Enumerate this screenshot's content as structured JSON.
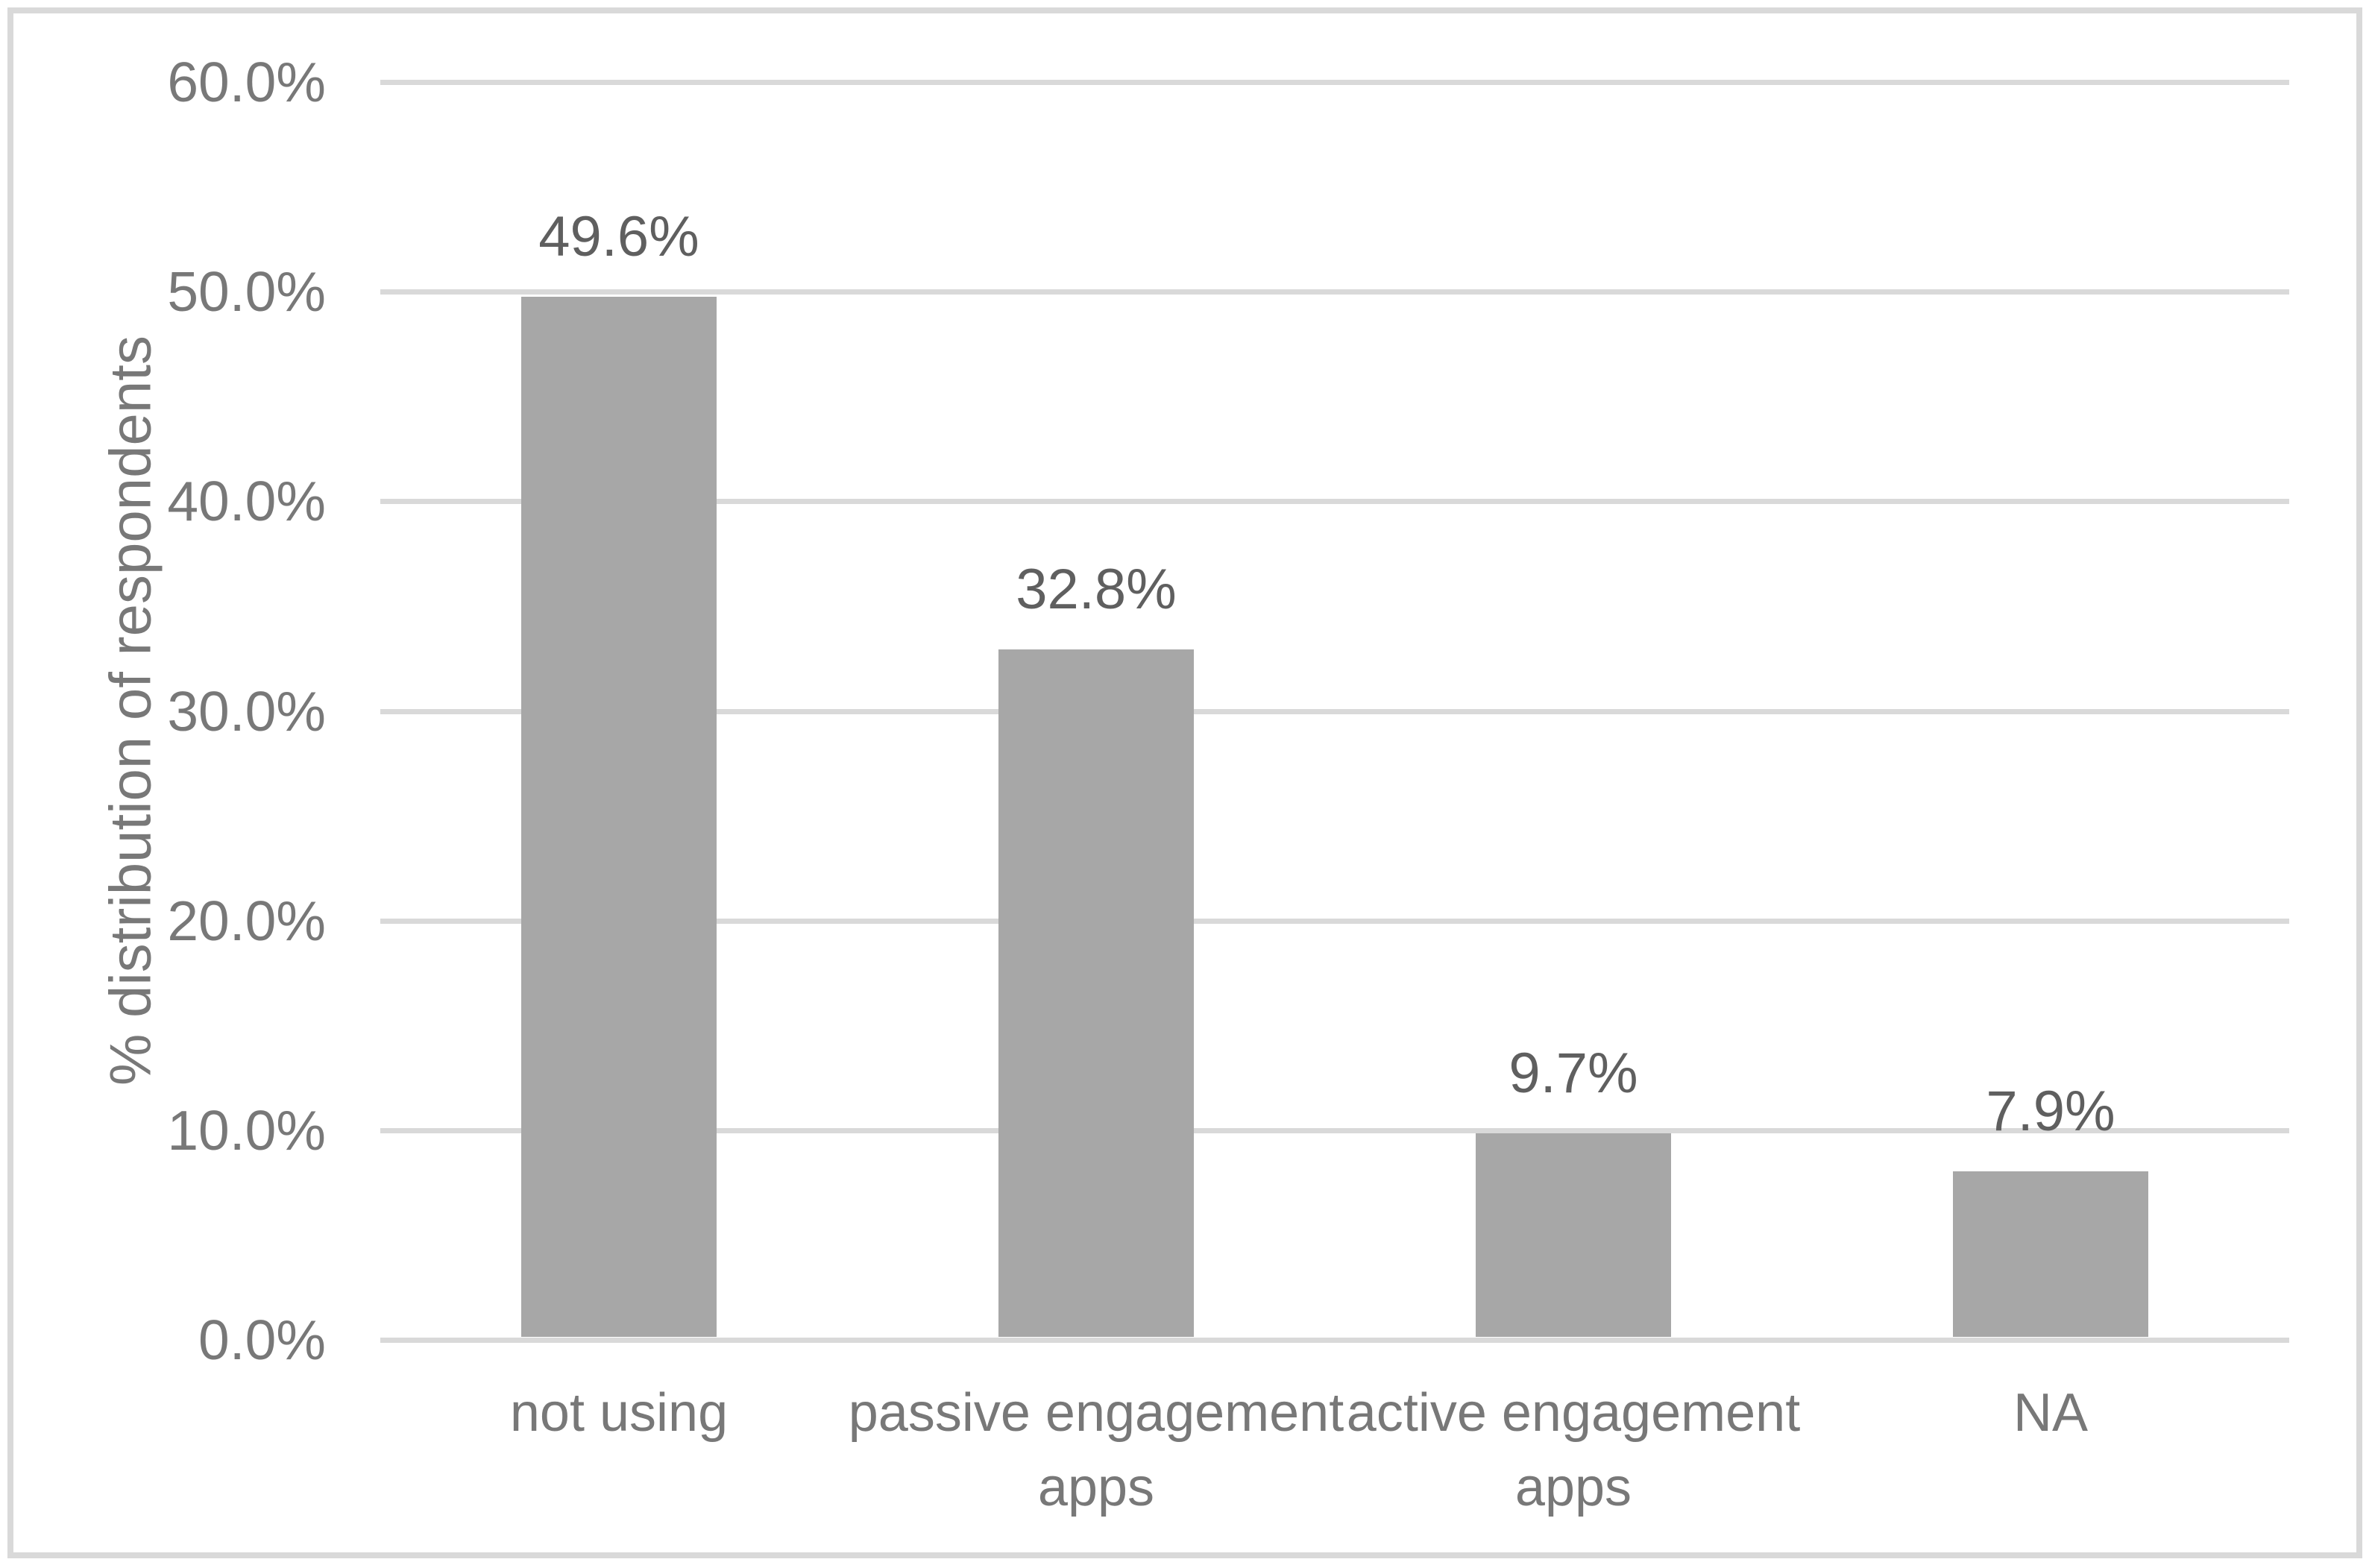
{
  "chart_data": {
    "type": "bar",
    "title": "",
    "xlabel": "",
    "ylabel": "% distribution of respondents",
    "categories": [
      "not using",
      "passive engagement\napps",
      "active engagement\napps",
      "NA"
    ],
    "values": [
      49.6,
      32.8,
      9.7,
      7.9
    ],
    "data_labels": [
      "49.6%",
      "32.8%",
      "9.7%",
      "7.9%"
    ],
    "ylim": [
      0,
      60
    ],
    "ytick_step": 10,
    "ytick_labels": [
      "0.0%",
      "10.0%",
      "20.0%",
      "30.0%",
      "40.0%",
      "50.0%",
      "60.0%"
    ],
    "grid": "horizontal",
    "legend_position": "none",
    "colors": {
      "bar_fill": "#a7a7a7",
      "gridline": "#d9d9d9",
      "frame_border": "#d9d9d9",
      "axis_label_text": "#787878",
      "data_label_text": "#5f5f5f",
      "background": "#ffffff"
    }
  }
}
